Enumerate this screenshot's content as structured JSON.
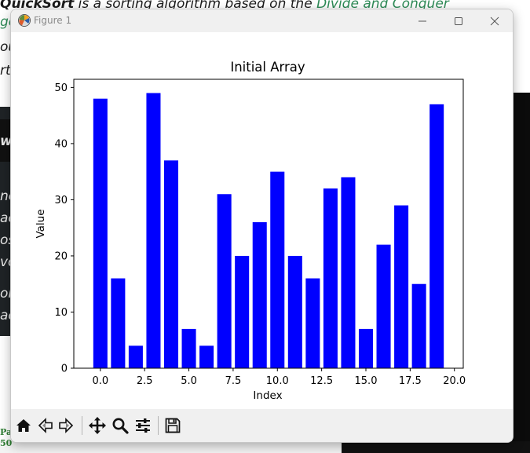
{
  "background_page": {
    "heading_prefix": "QuickSort",
    "heading_text": " is a sorting algorithm based on the ",
    "heading_link": "Divide and Conquer",
    "left_fragments": [
      "go",
      "ou",
      "rt",
      "w",
      "ne",
      "ac",
      "os",
      "vo",
      "ort",
      "ac"
    ],
    "bottom_left_small": [
      "Pa",
      "50"
    ]
  },
  "window": {
    "title": "Figure 1",
    "app_icon": "matplotlib-logo-icon",
    "buttons": {
      "minimize": "minimize-icon",
      "maximize": "maximize-icon",
      "close": "close-icon"
    }
  },
  "toolbar": {
    "tools": [
      "home-icon",
      "back-arrow-icon",
      "forward-arrow-icon",
      "pan-move-icon",
      "zoom-magnifier-icon",
      "configure-subplots-icon",
      "save-floppy-icon"
    ]
  },
  "chart_data": {
    "type": "bar",
    "title": "Initial Array",
    "xlabel": "Index",
    "ylabel": "Value",
    "color": "#0000ff",
    "x": [
      0,
      1,
      2,
      3,
      4,
      5,
      6,
      7,
      8,
      9,
      10,
      11,
      12,
      13,
      14,
      15,
      16,
      17,
      18,
      19
    ],
    "values": [
      48,
      16,
      4,
      49,
      37,
      7,
      4,
      31,
      20,
      26,
      35,
      20,
      16,
      32,
      34,
      7,
      22,
      29,
      15,
      47
    ],
    "xlim": [
      -1.5,
      20.5
    ],
    "ylim": [
      0,
      51.45
    ],
    "xticks": [
      0.0,
      2.5,
      5.0,
      7.5,
      10.0,
      12.5,
      15.0,
      17.5,
      20.0
    ],
    "xtick_labels": [
      "0.0",
      "2.5",
      "5.0",
      "7.5",
      "10.0",
      "12.5",
      "15.0",
      "17.5",
      "20.0"
    ],
    "yticks": [
      0,
      10,
      20,
      30,
      40,
      50
    ],
    "ytick_labels": [
      "0",
      "10",
      "20",
      "30",
      "40",
      "50"
    ],
    "grid": false,
    "legend": "none"
  }
}
